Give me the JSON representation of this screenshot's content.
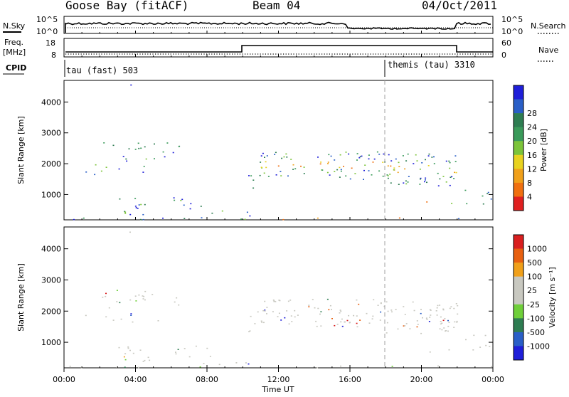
{
  "header": {
    "station": "Goose Bay (fitACF)",
    "beam": "Beam 04",
    "date": "04/Oct/2011"
  },
  "side_labels": {
    "nsky": "N.Sky",
    "freq_line1": "Freq.",
    "freq_line2": "[MHz]",
    "cpid": "CPID",
    "nsearch": "N.Search",
    "nave": "Nave"
  },
  "noise_axis": {
    "left_ticks": [
      "10^5",
      "10^0"
    ],
    "right_ticks": [
      "10^5",
      "10^0"
    ]
  },
  "freq_axis": {
    "left_ticks": [
      "18",
      "8"
    ],
    "right_ticks": [
      "60",
      "0"
    ]
  },
  "cpid_labels": [
    "tau (fast) 503",
    "themis (tau) 3310"
  ],
  "colors": {
    "power": [
      "#1f1fd9",
      "#2a5fc7",
      "#2e7d52",
      "#3a9a5a",
      "#7cc43a",
      "#e8d21f",
      "#f0a01a",
      "#f07010",
      "#e02020"
    ],
    "velocity": [
      "#d91f1f",
      "#e86010",
      "#f0a01a",
      "#c8c8c0",
      "#c8c8c0",
      "#6fcf3a",
      "#2e7d52",
      "#2a5fc7",
      "#1f1fd9"
    ],
    "dashed_marker": "#a0a0a0"
  },
  "chart_data": [
    {
      "type": "heatmap",
      "title": "Power",
      "xlabel": "",
      "ylabel": "Slant Range [km]",
      "x_range": [
        "00:00",
        "24:00"
      ],
      "ylim": [
        180,
        4700
      ],
      "yticks": [
        1000,
        2000,
        3000,
        4000
      ],
      "grid": false,
      "colorbar": {
        "label": "Power [dB]",
        "ticks": [
          4,
          8,
          12,
          16,
          20,
          24,
          28
        ]
      }
    },
    {
      "type": "heatmap",
      "title": "Velocity",
      "xlabel": "Time UT",
      "ylabel": "Slant Range [km]",
      "x_range": [
        "00:00",
        "24:00"
      ],
      "xticks": [
        "00:00",
        "04:00",
        "08:00",
        "12:00",
        "16:00",
        "20:00",
        "00:00"
      ],
      "ylim": [
        180,
        4700
      ],
      "yticks": [
        1000,
        2000,
        3000,
        4000
      ],
      "grid": false,
      "colorbar": {
        "label": "Velocity [m s⁻¹]",
        "ticks": [
          1000,
          500,
          100,
          25,
          -25,
          -100,
          -500,
          -1000
        ]
      }
    }
  ]
}
